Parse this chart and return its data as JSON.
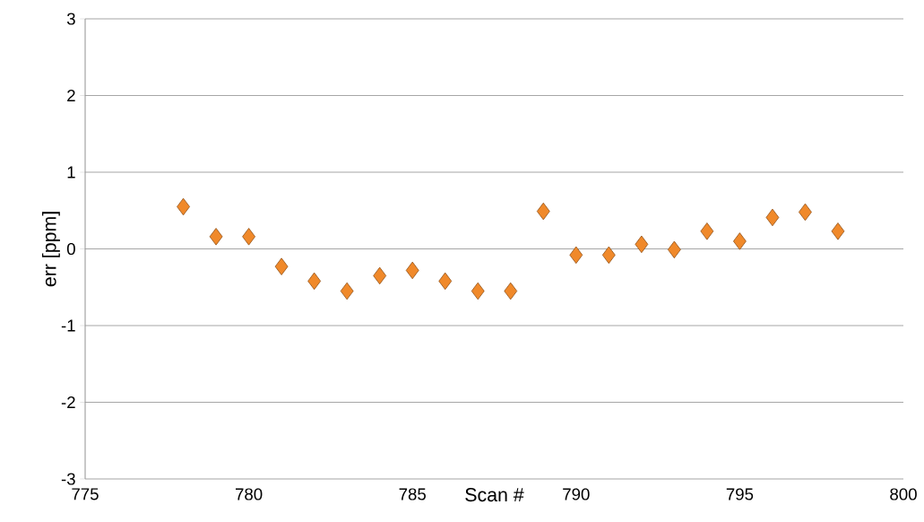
{
  "chart_data": {
    "type": "scatter",
    "xlabel": "Scan #",
    "ylabel": "err [ppm]",
    "x": [
      778,
      779,
      780,
      781,
      782,
      783,
      784,
      785,
      786,
      787,
      788,
      789,
      790,
      791,
      792,
      793,
      794,
      795,
      796,
      797,
      798
    ],
    "values": [
      0.55,
      0.16,
      0.16,
      -0.23,
      -0.42,
      -0.55,
      -0.35,
      -0.28,
      -0.42,
      -0.55,
      -0.55,
      0.49,
      -0.08,
      -0.08,
      0.06,
      -0.01,
      0.23,
      0.1,
      0.41,
      0.48,
      0.23
    ],
    "color": "#f0892a",
    "marker": "diamond",
    "grid": "y",
    "xlim": [
      775,
      800
    ],
    "xticks": [
      775,
      780,
      785,
      790,
      795,
      800
    ],
    "ylim": [
      -3,
      3
    ],
    "yticks": [
      -3,
      -2,
      -1,
      0,
      1,
      2,
      3
    ]
  }
}
